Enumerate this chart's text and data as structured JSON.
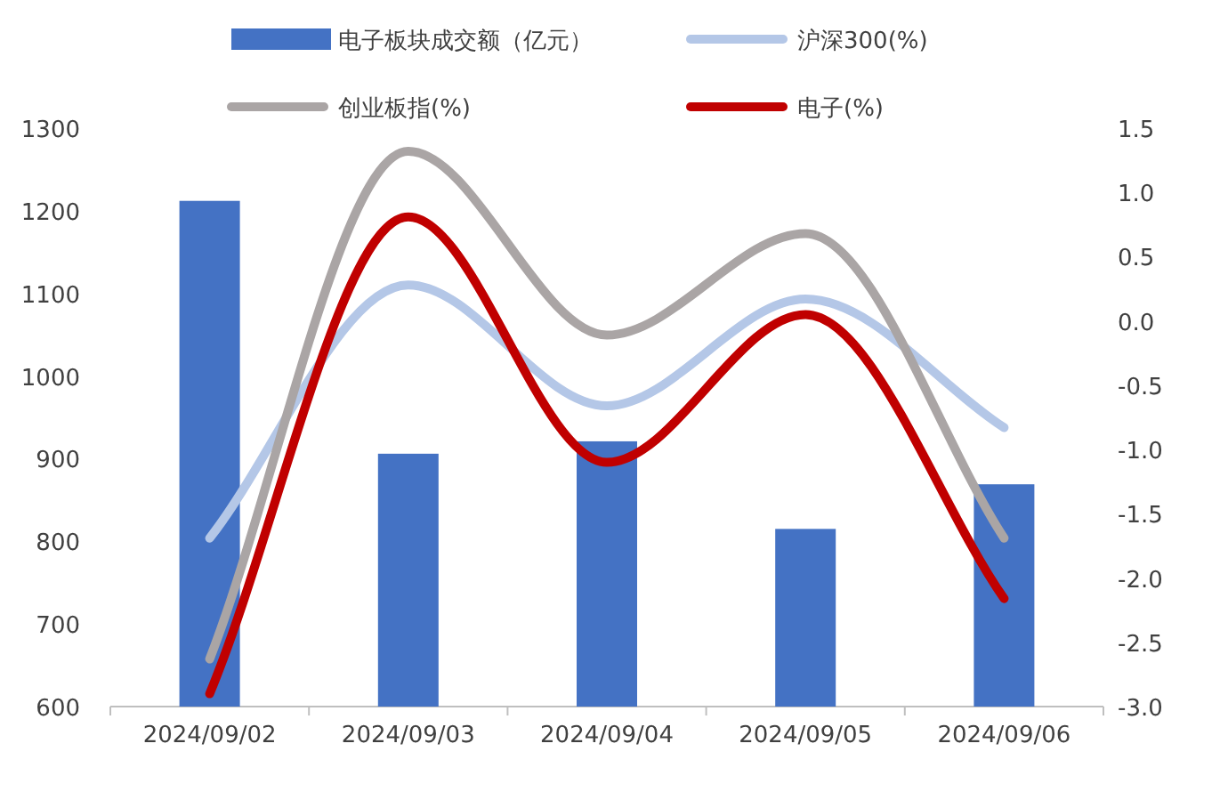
{
  "chart_data": {
    "type": "bar",
    "categories": [
      "2024/09/02",
      "2024/09/03",
      "2024/09/04",
      "2024/09/05",
      "2024/09/06"
    ],
    "series": [
      {
        "name": "电子板块成交额（亿元）",
        "color": "#4472c4",
        "values": [
          1212,
          906,
          921,
          815,
          869
        ]
      },
      {
        "name": "沪深300(%)",
        "type": "line",
        "axis": "y2",
        "color": "#b4c7e7",
        "values": [
          -1.69,
          0.28,
          -0.66,
          0.17,
          -0.83
        ]
      },
      {
        "name": "创业板指(%)",
        "type": "line",
        "axis": "y2",
        "color": "#aaa5a5",
        "values": [
          -2.63,
          1.32,
          -0.11,
          0.68,
          -1.69
        ]
      },
      {
        "name": "电子(%)",
        "type": "line",
        "axis": "y2",
        "color": "#c00000",
        "values": [
          -2.9,
          0.81,
          -1.1,
          0.05,
          -2.16
        ]
      }
    ],
    "ylim": [
      600,
      1300
    ],
    "yticks": [
      600,
      700,
      800,
      900,
      1000,
      1100,
      1200,
      1300
    ],
    "y2lim": [
      -3.0,
      1.5
    ],
    "y2ticks": [
      {
        "value": -3.0,
        "label": "-3.0"
      },
      {
        "value": -2.5,
        "label": "-2.5"
      },
      {
        "value": -2.0,
        "label": "-2.0"
      },
      {
        "value": -1.5,
        "label": "-1.5"
      },
      {
        "value": -1.0,
        "label": "-1.0"
      },
      {
        "value": -0.5,
        "label": "-0.5"
      },
      {
        "value": 0.0,
        "label": "0.0"
      },
      {
        "value": 0.5,
        "label": "0.5"
      },
      {
        "value": 1.0,
        "label": "1.0"
      },
      {
        "value": 1.5,
        "label": "1.5"
      }
    ],
    "grid": false,
    "legend": "top",
    "line_style": "solid",
    "marker": "none"
  }
}
